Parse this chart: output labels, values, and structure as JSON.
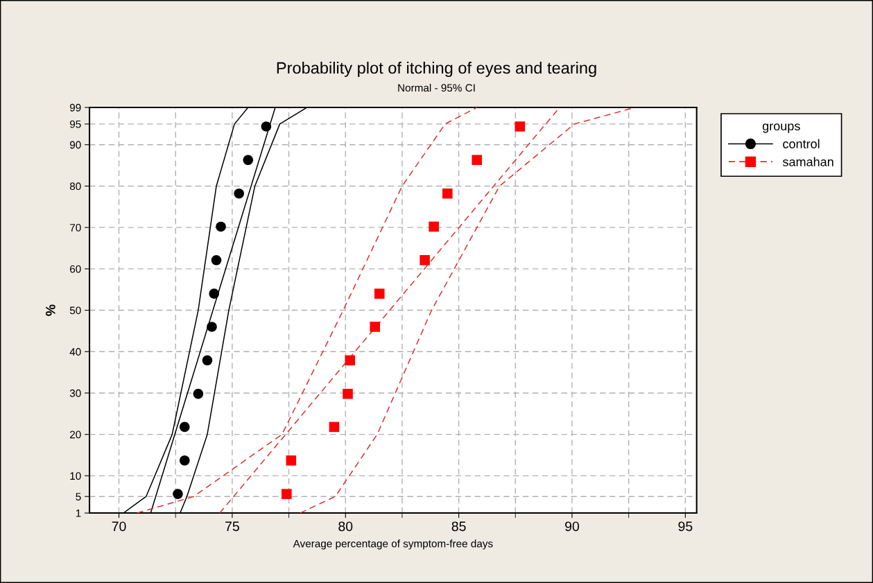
{
  "chart_data": {
    "type": "line",
    "title": "Probability plot of itching of eyes and tearing",
    "subtitle": "Normal - 95% CI",
    "xlabel": "Average percentage of symptom-free days",
    "ylabel": "%",
    "legend_title": "groups",
    "xlim": [
      68.7,
      95.5
    ],
    "xticks": [
      70,
      {
        "value": 72.5,
        "label": null
      },
      75,
      {
        "value": 77.5,
        "label": null
      },
      80,
      {
        "value": 82.5,
        "label": null
      },
      85,
      {
        "value": 87.5,
        "label": null
      },
      90,
      {
        "value": 92.5,
        "label": null
      },
      95
    ],
    "ylim": [
      1,
      99
    ],
    "yticks": [
      1,
      5,
      10,
      20,
      30,
      40,
      50,
      60,
      70,
      80,
      90,
      95,
      99
    ],
    "grid": true,
    "legend": "top right",
    "series": [
      {
        "name": "control",
        "type": "scatter",
        "marker": "circle",
        "line_style": "solid",
        "color": "#000000",
        "x": [
          72.6,
          72.9,
          72.9,
          73.5,
          73.9,
          74.1,
          74.2,
          74.3,
          74.5,
          75.3,
          75.7,
          76.5
        ],
        "values": [
          5.6,
          13.7,
          21.8,
          29.8,
          37.9,
          46,
          54,
          62.1,
          70.2,
          78.2,
          86.3,
          94.4
        ]
      },
      {
        "name": "samahan",
        "type": "scatter",
        "marker": "square",
        "line_style": "dashed",
        "color": "#ff0000",
        "x": [
          77.4,
          77.6,
          79.5,
          80.1,
          80.2,
          81.3,
          81.5,
          83.5,
          83.9,
          84.5,
          85.8,
          87.7
        ],
        "values": [
          5.6,
          13.7,
          21.8,
          29.8,
          37.9,
          46,
          54,
          62.1,
          70.2,
          78.2,
          86.3,
          94.4
        ]
      },
      {
        "line_style": "solid",
        "color": "#000000",
        "x": [
          71.4,
          74.15,
          76.9
        ],
        "values": [
          1,
          50,
          99
        ]
      },
      {
        "line_style": "solid",
        "color": "#000000",
        "x": [
          70.2,
          71.2,
          72.35,
          73.5,
          74.3,
          75.1,
          75.7
        ],
        "values": [
          1,
          5,
          20,
          50,
          80,
          95,
          99
        ]
      },
      {
        "type": "line",
        "line_style": "solid",
        "color": "#000000",
        "x": [
          72.7,
          73.0,
          73.9,
          74.85,
          76.0,
          77.1,
          78.3
        ],
        "values": [
          1,
          5,
          20,
          50,
          80,
          95,
          99
        ]
      },
      {
        "type": "line",
        "line_style": "dashed",
        "color": "#e03030",
        "x": [
          74.45,
          81.95,
          89.45
        ],
        "values": [
          1,
          50,
          99
        ]
      },
      {
        "type": "line",
        "line_style": "dashed",
        "color": "#e03030",
        "x": [
          70.8,
          73.3,
          77.2,
          79.9,
          82.5,
          84.4,
          85.8
        ],
        "values": [
          1,
          5,
          20,
          50,
          80,
          95,
          99
        ]
      },
      {
        "type": "line",
        "line_style": "dashed",
        "color": "#e03030",
        "x": [
          78.0,
          79.55,
          81.4,
          83.8,
          86.8,
          90.1,
          92.65
        ],
        "values": [
          1,
          5,
          20,
          50,
          80,
          95,
          98.8
        ]
      }
    ]
  }
}
